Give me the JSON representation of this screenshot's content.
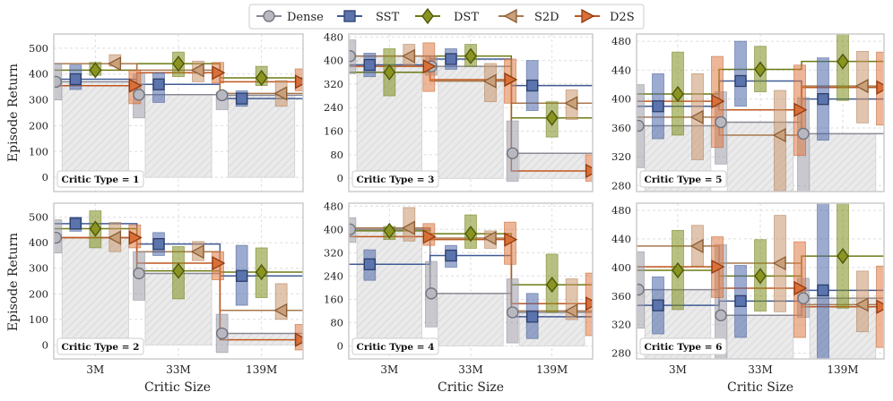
{
  "legend": [
    {
      "name": "Dense",
      "color": "#8a8a96",
      "marker": "circle"
    },
    {
      "name": "SST",
      "color": "#3f5a95",
      "marker": "square"
    },
    {
      "name": "DST",
      "color": "#6b7a12",
      "marker": "diamond"
    },
    {
      "name": "S2D",
      "color": "#a8784e",
      "marker": "triangle-left"
    },
    {
      "name": "D2S",
      "color": "#c0561d",
      "marker": "triangle-right"
    }
  ],
  "chart_data": [
    {
      "type": "step-line-with-bars",
      "panel_label": "Critic Type = 1",
      "categories": [
        "3M",
        "33M",
        "139M"
      ],
      "ylim": [
        -55,
        555
      ],
      "yticks": [
        0,
        100,
        200,
        300,
        400,
        500
      ],
      "series": [
        {
          "name": "Dense",
          "means": [
            370,
            320,
            318
          ],
          "low": [
            300,
            230,
            262
          ],
          "high": [
            440,
            400,
            330
          ]
        },
        {
          "name": "SST",
          "means": [
            380,
            360,
            305
          ],
          "low": [
            340,
            290,
            275
          ],
          "high": [
            435,
            405,
            335
          ]
        },
        {
          "name": "DST",
          "means": [
            415,
            440,
            385
          ],
          "low": [
            395,
            390,
            355
          ],
          "high": [
            445,
            485,
            430
          ]
        },
        {
          "name": "S2D",
          "means": [
            440,
            415,
            325
          ],
          "low": [
            430,
            370,
            275
          ],
          "high": [
            475,
            450,
            375
          ]
        },
        {
          "name": "D2S",
          "means": [
            355,
            405,
            370
          ],
          "low": [
            285,
            365,
            335
          ],
          "high": [
            415,
            445,
            420
          ]
        }
      ]
    },
    {
      "type": "step-line-with-bars",
      "panel_label": "Critic Type = 3",
      "categories": [
        "3M",
        "33M",
        "139M"
      ],
      "ylim": [
        -45,
        490
      ],
      "yticks": [
        0,
        80,
        160,
        240,
        320,
        400,
        480
      ],
      "series": [
        {
          "name": "Dense",
          "means": [
            415,
            380,
            85
          ],
          "low": [
            355,
            350,
            -10
          ],
          "high": [
            470,
            415,
            195
          ]
        },
        {
          "name": "SST",
          "means": [
            385,
            405,
            315
          ],
          "low": [
            345,
            370,
            230
          ],
          "high": [
            425,
            440,
            400
          ]
        },
        {
          "name": "DST",
          "means": [
            360,
            415,
            205
          ],
          "low": [
            280,
            380,
            140
          ],
          "high": [
            440,
            455,
            260
          ]
        },
        {
          "name": "S2D",
          "means": [
            415,
            330,
            255
          ],
          "low": [
            385,
            260,
            200
          ],
          "high": [
            455,
            390,
            300
          ]
        },
        {
          "name": "D2S",
          "means": [
            380,
            335,
            25
          ],
          "low": [
            295,
            255,
            -10
          ],
          "high": [
            460,
            405,
            80
          ]
        }
      ]
    },
    {
      "type": "step-line-with-bars",
      "panel_label": "Critic Type = 5",
      "categories": [
        "3M",
        "33M",
        "139M"
      ],
      "ylim": [
        272,
        490
      ],
      "yticks": [
        280,
        320,
        360,
        400,
        440,
        480
      ],
      "series": [
        {
          "name": "Dense",
          "means": [
            363,
            368,
            352
          ],
          "low": [
            305,
            310,
            270
          ],
          "high": [
            420,
            410,
            402
          ]
        },
        {
          "name": "SST",
          "means": [
            390,
            425,
            400
          ],
          "low": [
            345,
            390,
            343
          ],
          "high": [
            435,
            480,
            457
          ]
        },
        {
          "name": "DST",
          "means": [
            407,
            441,
            452
          ],
          "low": [
            350,
            410,
            398
          ],
          "high": [
            465,
            473,
            490
          ]
        },
        {
          "name": "S2D",
          "means": [
            375,
            350,
            418
          ],
          "low": [
            316,
            273,
            367
          ],
          "high": [
            435,
            412,
            466
          ]
        },
        {
          "name": "D2S",
          "means": [
            397,
            385,
            416
          ],
          "low": [
            333,
            322,
            364
          ],
          "high": [
            459,
            447,
            465
          ]
        }
      ]
    },
    {
      "type": "step-line-with-bars",
      "panel_label": "Critic Type = 2",
      "categories": [
        "3M",
        "33M",
        "139M"
      ],
      "ylim": [
        -55,
        555
      ],
      "yticks": [
        0,
        100,
        200,
        300,
        400,
        500
      ],
      "series": [
        {
          "name": "Dense",
          "means": [
            420,
            280,
            45
          ],
          "low": [
            360,
            175,
            -30
          ],
          "high": [
            490,
            365,
            120
          ]
        },
        {
          "name": "SST",
          "means": [
            475,
            395,
            270
          ],
          "low": [
            445,
            350,
            155
          ],
          "high": [
            500,
            440,
            390
          ]
        },
        {
          "name": "DST",
          "means": [
            455,
            290,
            285
          ],
          "low": [
            380,
            180,
            185
          ],
          "high": [
            525,
            385,
            380
          ]
        },
        {
          "name": "S2D",
          "means": [
            420,
            365,
            135
          ],
          "low": [
            365,
            330,
            100
          ],
          "high": [
            480,
            405,
            240
          ]
        },
        {
          "name": "D2S",
          "means": [
            420,
            320,
            20
          ],
          "low": [
            380,
            255,
            -20
          ],
          "high": [
            470,
            365,
            80
          ]
        }
      ]
    },
    {
      "type": "step-line-with-bars",
      "panel_label": "Critic Type = 4",
      "categories": [
        "3M",
        "33M",
        "139M"
      ],
      "ylim": [
        -45,
        490
      ],
      "yticks": [
        0,
        80,
        160,
        240,
        320,
        400,
        480
      ],
      "series": [
        {
          "name": "Dense",
          "means": [
            400,
            180,
            115
          ],
          "low": [
            355,
            65,
            10
          ],
          "high": [
            440,
            290,
            230
          ]
        },
        {
          "name": "SST",
          "means": [
            280,
            310,
            100
          ],
          "low": [
            225,
            270,
            25
          ],
          "high": [
            330,
            345,
            180
          ]
        },
        {
          "name": "DST",
          "means": [
            395,
            385,
            210
          ],
          "low": [
            365,
            335,
            115
          ],
          "high": [
            410,
            450,
            315
          ]
        },
        {
          "name": "S2D",
          "means": [
            405,
            370,
            120
          ],
          "low": [
            360,
            335,
            90
          ],
          "high": [
            475,
            395,
            230
          ]
        },
        {
          "name": "D2S",
          "means": [
            375,
            365,
            145
          ],
          "low": [
            345,
            280,
            35
          ],
          "high": [
            420,
            425,
            250
          ]
        }
      ]
    },
    {
      "type": "step-line-with-bars",
      "panel_label": "Critic Type = 6",
      "categories": [
        "3M",
        "33M",
        "139M"
      ],
      "ylim": [
        272,
        490
      ],
      "yticks": [
        280,
        320,
        360,
        400,
        440,
        480
      ],
      "series": [
        {
          "name": "Dense",
          "means": [
            369,
            333,
            357
          ],
          "low": [
            315,
            272,
            330
          ],
          "high": [
            422,
            432,
            385
          ]
        },
        {
          "name": "SST",
          "means": [
            347,
            353,
            368
          ],
          "low": [
            307,
            302,
            272
          ],
          "high": [
            387,
            403,
            490
          ]
        },
        {
          "name": "DST",
          "means": [
            396,
            388,
            416
          ],
          "low": [
            341,
            339,
            343
          ],
          "high": [
            452,
            439,
            490
          ]
        },
        {
          "name": "S2D",
          "means": [
            430,
            406,
            348
          ],
          "low": [
            402,
            338,
            310
          ],
          "high": [
            459,
            473,
            395
          ]
        },
        {
          "name": "D2S",
          "means": [
            401,
            371,
            345
          ],
          "low": [
            358,
            302,
            288
          ],
          "high": [
            443,
            436,
            402
          ]
        }
      ]
    }
  ],
  "axes": {
    "xlabel": "Critic Size",
    "ylabel": "Episode Return"
  }
}
